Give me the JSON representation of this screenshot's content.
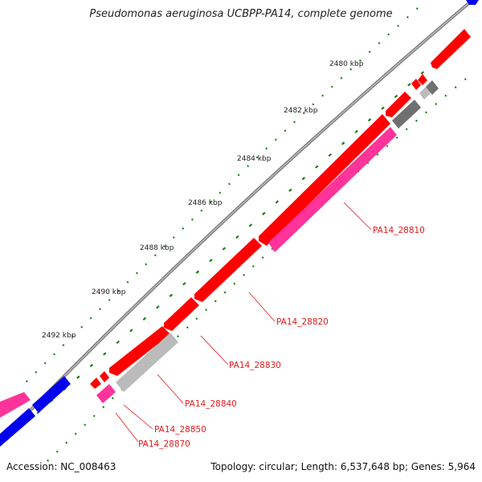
{
  "header": {
    "title": "Pseudomonas aeruginosa UCBPP-PA14, complete genome"
  },
  "footer": {
    "accession": "Accession: NC_008463",
    "summary": "Topology: circular; Length: 6,537,648 bp; Genes: 5,964"
  },
  "ticks": [
    "2480 kbp",
    "2482 kbp",
    "2484 kbp",
    "2486 kbp",
    "2488 kbp",
    "2490 kbp",
    "2492 kbp"
  ],
  "gene_labels": [
    "PA14_28810",
    "PA14_28820",
    "PA14_28830",
    "PA14_28840",
    "PA14_28850",
    "PA14_28870"
  ],
  "colors": {
    "backbone": "#808080",
    "forward_cds": "#ff0000",
    "reverse_cds": "#ff3399",
    "other_forward": "#0000ee",
    "grey_feature": "#bbbbbb",
    "dark_grey_feature": "#707070",
    "gc_dots": "#1a7f1a",
    "label": "#e41a1c"
  }
}
